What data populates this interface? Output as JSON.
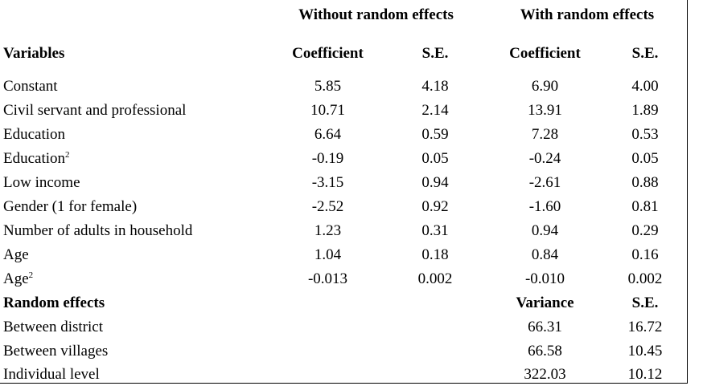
{
  "header": {
    "group_without": "Without random effects",
    "group_with": "With random effects",
    "variables": "Variables",
    "coef_without": "Coefficient",
    "se_without": "S.E.",
    "coef_with": "Coefficient",
    "se_with": "S.E."
  },
  "rows": [
    {
      "label": "Constant",
      "sup": "",
      "coef_wo": "5.85",
      "se_wo": "4.18",
      "coef_w": "6.90",
      "se_w": "4.00"
    },
    {
      "label": "Civil servant and professional",
      "sup": "",
      "coef_wo": "10.71",
      "se_wo": "2.14",
      "coef_w": "13.91",
      "se_w": "1.89"
    },
    {
      "label": "Education",
      "sup": "",
      "coef_wo": "6.64",
      "se_wo": "0.59",
      "coef_w": "7.28",
      "se_w": "0.53"
    },
    {
      "label": "Education",
      "sup": "2",
      "coef_wo": "-0.19",
      "se_wo": "0.05",
      "coef_w": "-0.24",
      "se_w": "0.05"
    },
    {
      "label": "Low income",
      "sup": "",
      "coef_wo": "-3.15",
      "se_wo": "0.94",
      "coef_w": "-2.61",
      "se_w": "0.88"
    },
    {
      "label": "Gender (1 for female)",
      "sup": "",
      "coef_wo": "-2.52",
      "se_wo": "0.92",
      "coef_w": "-1.60",
      "se_w": "0.81"
    },
    {
      "label": "Number of adults in household",
      "sup": "",
      "coef_wo": "1.23",
      "se_wo": "0.31",
      "coef_w": "0.94",
      "se_w": "0.29"
    },
    {
      "label": "Age",
      "sup": "",
      "coef_wo": "1.04",
      "se_wo": "0.18",
      "coef_w": "0.84",
      "se_w": "0.16"
    },
    {
      "label": "Age",
      "sup": "2",
      "coef_wo": "-0.013",
      "se_wo": "0.002",
      "coef_w": "-0.010",
      "se_w": "0.002"
    }
  ],
  "random_effects": {
    "label": "Random effects",
    "variance_header": "Variance",
    "se_header": "S.E.",
    "rows": [
      {
        "label": "Between district",
        "variance": "66.31",
        "se": "16.72"
      },
      {
        "label": "Between villages",
        "variance": "66.58",
        "se": "10.45"
      },
      {
        "label": "Individual level",
        "variance": "322.03",
        "se": "10.12"
      }
    ]
  }
}
